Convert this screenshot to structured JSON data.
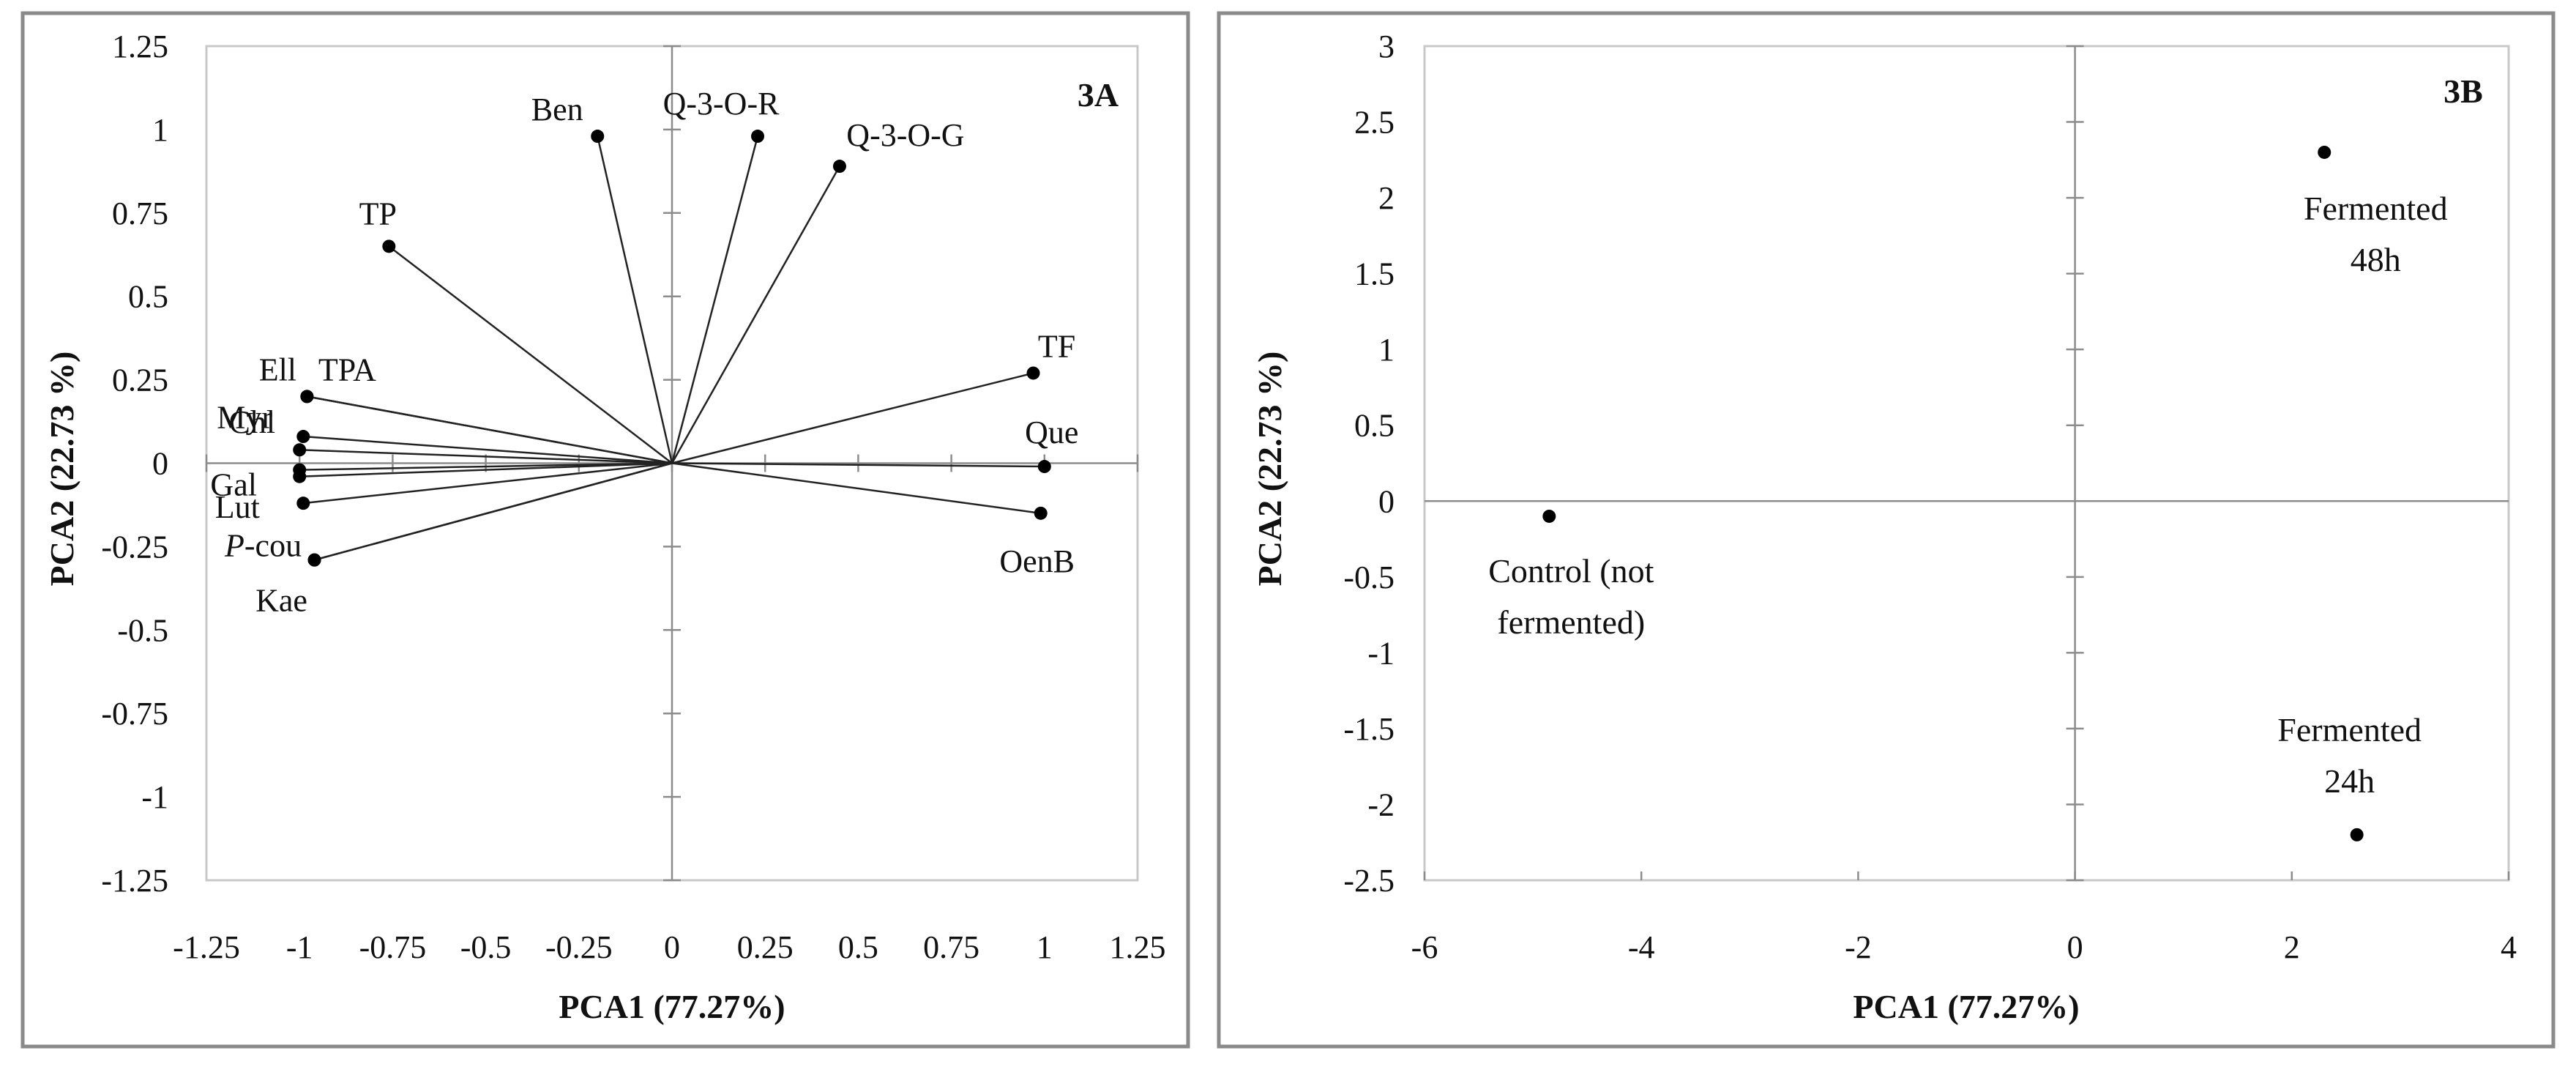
{
  "chart_data": [
    {
      "panel_label": "3A",
      "type": "scatter",
      "subtype": "biplot-vectors",
      "xlabel": "PCA1 (77.27%)",
      "ylabel": "PCA2 (22.73 %)",
      "xlim": [
        -1.25,
        1.25
      ],
      "ylim": [
        -1.25,
        1.25
      ],
      "xticks": [
        -1.25,
        -1,
        -0.75,
        -0.5,
        -0.25,
        0,
        0.25,
        0.5,
        0.75,
        1,
        1.25
      ],
      "yticks": [
        -1.25,
        -1,
        -0.75,
        -0.5,
        -0.25,
        0,
        0.25,
        0.5,
        0.75,
        1,
        1.25
      ],
      "xtick_labels": [
        "-1.25",
        "-1",
        "-0.75",
        "-0.5",
        "-0.25",
        "0",
        "0.25",
        "0.5",
        "0.75",
        "1",
        "1.25"
      ],
      "ytick_labels": [
        "-1.25",
        "-1",
        "-0.75",
        "-0.5",
        "-0.25",
        "0",
        "0.25",
        "0.5",
        "0.75",
        "1",
        "1.25"
      ],
      "grid": false,
      "points": [
        {
          "label": "Ben",
          "x": -0.2,
          "y": 0.98
        },
        {
          "label": "Q-3-O-R",
          "x": 0.23,
          "y": 0.98
        },
        {
          "label": "Q-3-O-G",
          "x": 0.45,
          "y": 0.89
        },
        {
          "label": "TP",
          "x": -0.76,
          "y": 0.65
        },
        {
          "label": "TF",
          "x": 0.97,
          "y": 0.27
        },
        {
          "label": "Que",
          "x": 1.0,
          "y": -0.01
        },
        {
          "label": "OenB",
          "x": 0.99,
          "y": -0.15
        },
        {
          "label": "Ell",
          "x": -0.98,
          "y": 0.2
        },
        {
          "label": "TPA",
          "x": -0.98,
          "y": 0.2
        },
        {
          "label": "Chl",
          "x": -0.99,
          "y": 0.08
        },
        {
          "label": "Myr",
          "x": -1.0,
          "y": 0.04
        },
        {
          "label": "Gal",
          "x": -1.0,
          "y": -0.02
        },
        {
          "label": "",
          "x": -1.0,
          "y": -0.04
        },
        {
          "label": "Lut",
          "x": -0.99,
          "y": -0.12
        },
        {
          "label": "P-cou",
          "label_italic_prefix": "P",
          "x": -0.96,
          "y": -0.29
        },
        {
          "label": "Kae",
          "x": -0.96,
          "y": -0.29
        }
      ]
    },
    {
      "panel_label": "3B",
      "type": "scatter",
      "xlabel": "PCA1 (77.27%)",
      "ylabel": "PCA2 (22.73 %)",
      "xlim": [
        -6,
        4
      ],
      "ylim": [
        -2.5,
        3
      ],
      "xticks": [
        -6,
        -4,
        -2,
        0,
        2,
        4
      ],
      "yticks": [
        -2.5,
        -2,
        -1.5,
        -1,
        -0.5,
        0,
        0.5,
        1,
        1.5,
        2,
        2.5,
        3
      ],
      "xtick_labels": [
        "-6",
        "-4",
        "-2",
        "0",
        "2",
        "4"
      ],
      "ytick_labels": [
        "-2.5",
        "-2",
        "-1.5",
        "-1",
        "-0.5",
        "0",
        "0.5",
        "1",
        "1.5",
        "2",
        "2.5",
        "3"
      ],
      "grid": false,
      "points": [
        {
          "label_lines": [
            "Control (not",
            "fermented)"
          ],
          "x": -4.85,
          "y": -0.1
        },
        {
          "label_lines": [
            "Fermented",
            "48h"
          ],
          "x": 2.3,
          "y": 2.3
        },
        {
          "label_lines": [
            "Fermented",
            "24h"
          ],
          "x": 2.6,
          "y": -2.2
        }
      ]
    }
  ]
}
